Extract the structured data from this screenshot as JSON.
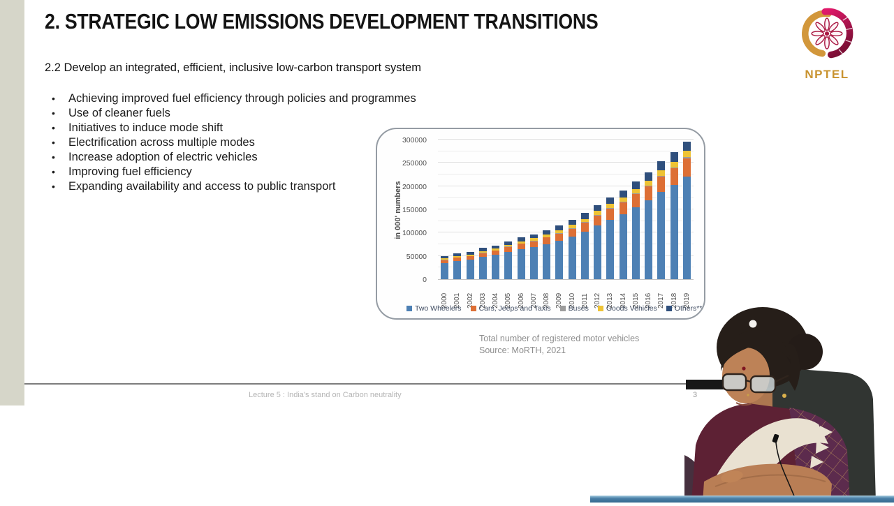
{
  "slide": {
    "title": "2. STRATEGIC LOW EMISSIONS DEVELOPMENT TRANSITIONS",
    "subtitle": "2.2 Develop an integrated, efficient, inclusive low-carbon transport system",
    "bullets": [
      "Achieving improved fuel efficiency through policies and programmes",
      "Use of cleaner fuels",
      "Initiatives to induce mode shift",
      "Electrification across multiple modes",
      "Increase adoption of electric vehicles",
      "Improving fuel efficiency",
      "Expanding availability and access to public transport"
    ],
    "chart_caption": [
      "Total number of registered motor vehicles",
      "Source: MoRTH, 2021"
    ],
    "left_accent_color": "#d6d6c9"
  },
  "footer": {
    "lecture_label": "Lecture 5 : India's stand on Carbon neutrality",
    "page_number": "3"
  },
  "logo": {
    "text": "NPTEL",
    "gold": "#d2973b",
    "crimson": "#b5123f"
  },
  "chart_data": {
    "type": "bar",
    "stacked": true,
    "title": "",
    "xlabel": "",
    "ylabel": "in 000' numbers",
    "ylim": [
      0,
      300000
    ],
    "yticks": [
      0,
      50000,
      100000,
      150000,
      200000,
      250000,
      300000
    ],
    "gridline_interval": 25000,
    "grid": true,
    "legend_position": "bottom",
    "categories": [
      "2000",
      "2001",
      "2002",
      "2003",
      "2004",
      "2005",
      "2006",
      "2007",
      "2008",
      "2009",
      "2010",
      "2011",
      "2012",
      "2013",
      "2014",
      "2015",
      "2016",
      "2017",
      "2018",
      "2019"
    ],
    "series": [
      {
        "name": "Two Wheelers",
        "color": "#4d80b4",
        "values": [
          34118,
          38556,
          41581,
          47519,
          51922,
          58799,
          64743,
          69129,
          75336,
          82402,
          91598,
          101865,
          115419,
          127830,
          139410,
          154298,
          168975,
          187091,
          202087,
          221270
        ]
      },
      {
        "name": "Cars, Jeeps and Taxis",
        "color": "#dd6f35",
        "values": [
          7058,
          7613,
          7971,
          8599,
          9451,
          10320,
          11526,
          12649,
          13950,
          15313,
          17109,
          19231,
          21568,
          23730,
          25961,
          28611,
          30577,
          33212,
          35975,
          38846
        ]
      },
      {
        "name": "Buses",
        "color": "#9c9c9c",
        "values": [
          634,
          634,
          635,
          721,
          768,
          892,
          992,
          1350,
          1427,
          1486,
          1527,
          1604,
          1677,
          1814,
          1887,
          1971,
          2209,
          2286,
          2392,
          2447
        ]
      },
      {
        "name": "Goods Vehicles",
        "color": "#eec335",
        "values": [
          2715,
          2948,
          2974,
          3492,
          3749,
          4031,
          4436,
          5119,
          5601,
          6041,
          6432,
          7064,
          7658,
          8307,
          8870,
          9344,
          10516,
          11411,
          12241,
          13021
        ]
      },
      {
        "name": "Others**",
        "color": "#2f4f7c",
        "values": [
          4332,
          5240,
          5763,
          6676,
          6828,
          7457,
          7921,
          8460,
          9039,
          9710,
          11080,
          12102,
          13169,
          14363,
          14576,
          15799,
          17754,
          19311,
          19975,
          20188
        ]
      }
    ]
  }
}
